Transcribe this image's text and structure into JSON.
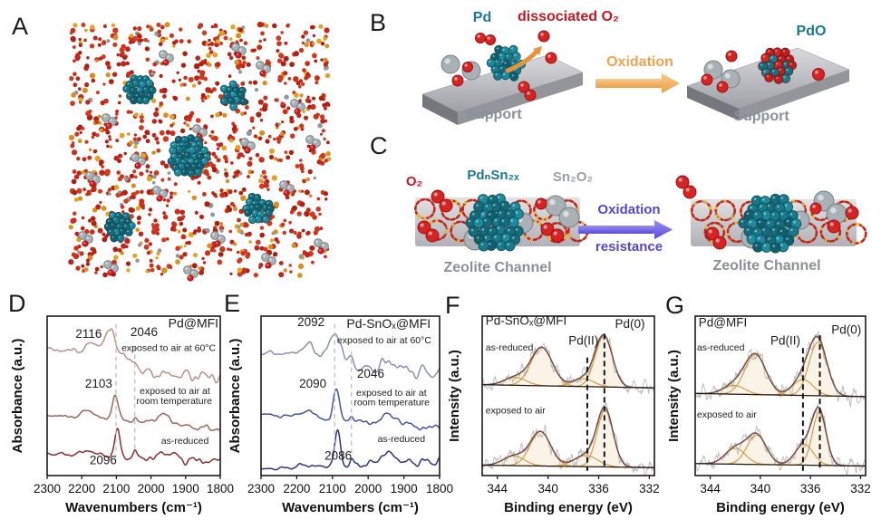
{
  "panels": {
    "a": {
      "letter": "A"
    },
    "b": {
      "letter": "B",
      "labels": {
        "pd": "Pd",
        "dissociated_o2": "dissociated O₂",
        "oxidation": "Oxidation",
        "pdo": "PdO",
        "support_left": "Support",
        "support_right": "Support"
      }
    },
    "c": {
      "letter": "C",
      "labels": {
        "o2": "O₂",
        "pd_n_sn_2x": "PdₙSn₂ₓ",
        "sn2o2": "Sn₂O₂",
        "oxidation": "Oxidation",
        "resistance": "resistance",
        "zeolite_channel_left": "Zeolite Channel",
        "zeolite_channel_right": "Zeolite Channel"
      }
    },
    "d": {
      "letter": "D"
    },
    "e": {
      "letter": "E"
    },
    "f": {
      "letter": "F"
    },
    "g": {
      "letter": "G"
    }
  },
  "colors": {
    "teal": "#1c7a8c",
    "red": "#cc1622",
    "orange": "#f0a252",
    "purple": "#5348d4",
    "gray_label": "#8a9095",
    "sn_gray": "#9aa1a7",
    "framework_red": "#c22718",
    "framework_yellow": "#e3a224",
    "xps_raw": "#b9b9b9",
    "xps_envelope": "#6b4845",
    "xps_component": "#d6953e"
  },
  "chart_data": [
    {
      "panel": "D",
      "type": "line",
      "chart_kind": "ir",
      "seed": 11,
      "title": "Pd@MFI",
      "xlabel": "Wavenumbers (cm⁻¹)",
      "ylabel": "Absorbance (a.u.)",
      "x_range": [
        2300,
        1800
      ],
      "x_axis_reversed": true,
      "x_ticks": [
        2300,
        2200,
        2100,
        2000,
        1900,
        1800
      ],
      "guide_color": "#c4c0c0",
      "guide_width": 1.4,
      "guide_dash": "5,4",
      "dashed_guides": [
        {
          "x": 2101,
          "y1": 0.05,
          "y2": 0.88
        },
        {
          "x": 2047,
          "y1": 0.19,
          "y2": 0.86
        }
      ],
      "series": [
        {
          "name": "exposed to air at 60°C",
          "color": "#b5938a",
          "base": 0.21,
          "tilt": 0.045,
          "peaks": [
            [
              2169,
              0.05,
              40
            ],
            [
              2118,
              0.135,
              38
            ],
            [
              2046,
              0.04,
              14
            ]
          ],
          "step": [
            2058,
            0.125,
            16
          ],
          "noise": [
            0.012,
            0.03
          ],
          "peak_labels": [
            2116,
            2046
          ]
        },
        {
          "name": "exposed to air at room temperature",
          "color": "#9a685c",
          "base": 0.62,
          "tilt": 0.09,
          "peaks": [
            [
              2180,
              0.05,
              45
            ],
            [
              2103,
              0.17,
              20
            ],
            [
              2046,
              0.035,
              12
            ],
            [
              1965,
              0.06,
              55
            ]
          ],
          "noise": [
            0.008,
            0.012
          ],
          "peak_labels": [
            2103
          ]
        },
        {
          "name": "as-reduced",
          "color": "#8b2d2d",
          "base": 0.862,
          "tilt": 0.05,
          "peaks": [
            [
              2180,
              0.03,
              45
            ],
            [
              2098,
              0.16,
              19
            ],
            [
              2046,
              0.04,
              11
            ],
            [
              1953,
              0.045,
              45
            ]
          ],
          "noise": [
            0.008,
            0.025
          ],
          "peak_labels": [
            2096
          ]
        }
      ],
      "annotations": [
        {
          "t": "2116",
          "x": 2180,
          "yf": 0.135,
          "s": 13.5
        },
        {
          "t": "2046",
          "x": 2020,
          "yf": 0.125,
          "s": 13.5
        },
        {
          "t": "Pd@MFI",
          "xf": 0.99,
          "yf": 0.07,
          "a": "end",
          "s": 14
        },
        {
          "t": "exposed to air at 60°C",
          "x": 1949,
          "yf": 0.22,
          "s": 10.5
        },
        {
          "t": "2103",
          "x": 2151,
          "yf": 0.45,
          "s": 13.5
        },
        {
          "t": "exposed to air at",
          "x": 1931,
          "yf": 0.49,
          "s": 10.5
        },
        {
          "t": "room temperature",
          "x": 1933,
          "yf": 0.55,
          "s": 10.5
        },
        {
          "t": "as-reduced",
          "x": 1902,
          "yf": 0.8,
          "s": 10.5
        },
        {
          "t": "2096",
          "x": 2138,
          "yf": 0.93,
          "s": 13.5
        }
      ]
    },
    {
      "panel": "E",
      "type": "line",
      "chart_kind": "ir",
      "seed": 22,
      "title": "Pd-SnOₓ@MFI",
      "xlabel": "Wavenumbers (cm⁻¹)",
      "ylabel": "Absorbance (a.u.)",
      "x_range": [
        2300,
        1800
      ],
      "x_axis_reversed": true,
      "x_ticks": [
        2300,
        2200,
        2100,
        2000,
        1900,
        1800
      ],
      "guide_color": "#c4c0c0",
      "guide_width": 1.4,
      "guide_dash": "5,4",
      "dashed_guides": [
        {
          "x": 2094,
          "y1": 0.05,
          "y2": 0.88
        },
        {
          "x": 2047,
          "y1": 0.22,
          "y2": 0.86
        }
      ],
      "series": [
        {
          "name": "exposed to air at 60°C",
          "color": "#8b90b3",
          "base": 0.23,
          "tilt": 0.04,
          "peaks": [
            [
              2170,
              0.06,
              40
            ],
            [
              2092,
              0.155,
              32
            ],
            [
              2046,
              0.04,
              14
            ],
            [
              1940,
              0.055,
              60
            ]
          ],
          "step": [
            2055,
            0.085,
            16
          ],
          "noise": [
            0.012,
            0.035
          ],
          "peak_labels": [
            2092,
            2046
          ]
        },
        {
          "name": "exposed to air at room temperature",
          "color": "#46539f",
          "base": 0.615,
          "tilt": 0.09,
          "peaks": [
            [
              2172,
              0.045,
              45
            ],
            [
              2089,
              0.185,
              21
            ],
            [
              2046,
              0.045,
              12
            ],
            [
              1938,
              0.06,
              55
            ]
          ],
          "noise": [
            0.009,
            0.015
          ],
          "peak_labels": [
            2090
          ]
        },
        {
          "name": "as-reduced",
          "color": "#2b3482",
          "base": 0.96,
          "tilt": -0.05,
          "peaks": [
            [
              2180,
              0.015,
              40
            ],
            [
              2086,
              0.215,
              19
            ],
            [
              2046,
              0.03,
              11
            ],
            [
              1945,
              0.065,
              50
            ]
          ],
          "noise": [
            0.007,
            0.02
          ],
          "peak_labels": [
            2086
          ]
        }
      ],
      "annotations": [
        {
          "t": "2092",
          "x": 2160,
          "yf": 0.062,
          "s": 13.5
        },
        {
          "t": "Pd-SnOₓ@MFI",
          "xf": 0.95,
          "yf": 0.075,
          "a": "end",
          "s": 14
        },
        {
          "t": "exposed to air at 60°C",
          "x": 1955,
          "yf": 0.17,
          "s": 10.5
        },
        {
          "t": "2046",
          "x": 1993,
          "yf": 0.385,
          "s": 13.5
        },
        {
          "t": "2090",
          "x": 2155,
          "yf": 0.45,
          "s": 13.5
        },
        {
          "t": "exposed to air at",
          "x": 1935,
          "yf": 0.5,
          "s": 10.5
        },
        {
          "t": "room temperature",
          "x": 1934,
          "yf": 0.56,
          "s": 10.5
        },
        {
          "t": "as-reduced",
          "x": 1907,
          "yf": 0.79,
          "s": 10.5
        },
        {
          "t": "2086",
          "x": 2084,
          "yf": 0.9,
          "s": 13.5
        }
      ]
    },
    {
      "panel": "F",
      "type": "line",
      "chart_kind": "xps",
      "seed": 33,
      "title": "Pd-SnOₓ@MFI",
      "xlabel": "Binding energy (eV)",
      "ylabel": "Intensity (a.u.)",
      "x_range": [
        345.2,
        331.6
      ],
      "x_axis_reversed": true,
      "x_ticks": [
        344,
        340,
        336,
        332
      ],
      "guide_color": "#161616",
      "guide_width": 2,
      "guide_dash": "6,4",
      "dashed_guides": [
        {
          "x": 336.9,
          "y1": 0.26,
          "y2": 0.97
        },
        {
          "x": 335.55,
          "y1": 0.11,
          "y2": 0.94
        }
      ],
      "raw_color": "#b9b9b9",
      "envelope_color": "#6b4845",
      "component_color": "#d6953e",
      "dashfit_color": "#9184bd",
      "fill_color": "#f6e7cf",
      "species": [
        "Pd(II)",
        "Pd(0)"
      ],
      "series": [
        {
          "name": "as-reduced",
          "base": 0.435,
          "blt": [
            -0.005,
            0.015
          ],
          "noise": 0.038,
          "comps": [
            [
              342.6,
              0.05,
              2.0
            ],
            [
              340.5,
              0.24,
              2.0
            ],
            [
              337.2,
              0.05,
              1.9
            ],
            [
              335.6,
              0.32,
              1.6
            ]
          ]
        },
        {
          "name": "exposed to air",
          "base": 0.945,
          "blt": [
            -0.01,
            0.005
          ],
          "noise": 0.042,
          "comps": [
            [
              342.7,
              0.06,
              2.0
            ],
            [
              340.6,
              0.215,
              1.9
            ],
            [
              337.0,
              0.07,
              2.2
            ],
            [
              335.5,
              0.355,
              1.5
            ]
          ]
        }
      ],
      "annotations": [
        {
          "t": "Pd-SnOₓ@MFI",
          "xf": 0.02,
          "yf": 0.055,
          "a": "start",
          "s": 13.5
        },
        {
          "t": "Pd(0)",
          "xf": 0.945,
          "yf": 0.075,
          "a": "end",
          "s": 13.5
        },
        {
          "t": "Pd(II)",
          "x": 337.2,
          "yf": 0.18,
          "s": 13.5
        },
        {
          "t": "as-reduced",
          "xf": 0.02,
          "yf": 0.215,
          "a": "start",
          "s": 10.5
        },
        {
          "t": "exposed to air",
          "xf": 0.02,
          "yf": 0.61,
          "a": "start",
          "s": 10.5
        }
      ]
    },
    {
      "panel": "G",
      "type": "line",
      "chart_kind": "xps",
      "seed": 44,
      "title": "Pd@MFI",
      "xlabel": "Binding energy (eV)",
      "ylabel": "Intensity (a.u.)",
      "x_range": [
        345.2,
        331.6
      ],
      "x_axis_reversed": true,
      "x_ticks": [
        344,
        340,
        336,
        332
      ],
      "guide_color": "#161616",
      "guide_width": 2,
      "guide_dash": "6,4",
      "dashed_guides": [
        {
          "x": 336.6,
          "y1": 0.2,
          "y2": 0.97
        },
        {
          "x": 335.25,
          "y1": 0.12,
          "y2": 0.97
        }
      ],
      "raw_color": "#b9b9b9",
      "envelope_color": "#6b4845",
      "component_color": "#d6953e",
      "dashfit_color": "#9184bd",
      "fill_color": "#f6e7cf",
      "species": [
        "Pd(II)",
        "Pd(0)"
      ],
      "series": [
        {
          "name": "as-reduced",
          "base": 0.495,
          "blt": [
            -0.01,
            0.01
          ],
          "noise": 0.045,
          "comps": [
            [
              342.1,
              0.055,
              2.0
            ],
            [
              340.4,
              0.25,
              2.0
            ],
            [
              336.6,
              0.1,
              1.9
            ],
            [
              335.4,
              0.335,
              1.7
            ]
          ]
        },
        {
          "name": "exposed to air",
          "base": 0.93,
          "blt": [
            -0.005,
            0.01
          ],
          "noise": 0.04,
          "comps": [
            [
              342.0,
              0.1,
              1.9
            ],
            [
              340.3,
              0.185,
              1.8
            ],
            [
              336.5,
              0.13,
              1.7
            ],
            [
              335.3,
              0.33,
              1.3
            ]
          ]
        }
      ],
      "annotations": [
        {
          "t": "Pd@MFI",
          "xf": 0.02,
          "yf": 0.065,
          "a": "start",
          "s": 13.5
        },
        {
          "t": "Pd(0)",
          "xf": 0.975,
          "yf": 0.11,
          "a": "end",
          "s": 13.5
        },
        {
          "t": "Pd(II)",
          "x": 338.0,
          "yf": 0.18,
          "s": 13.5
        },
        {
          "t": "as-reduced",
          "xf": 0.01,
          "yf": 0.215,
          "a": "start",
          "s": 10.5
        },
        {
          "t": "exposed to air",
          "xf": 0.01,
          "yf": 0.635,
          "a": "start",
          "s": 10.5
        }
      ]
    }
  ]
}
